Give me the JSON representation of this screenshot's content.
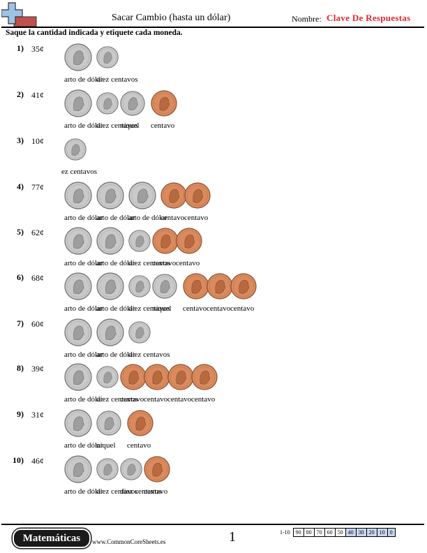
{
  "header": {
    "title": "Sacar Cambio (hasta un dólar)",
    "name_label": "Nombre:",
    "name_value": "Clave De Respuestas"
  },
  "instructions": "Saque la cantidad indicada y etiquete cada moneda.",
  "problems": [
    {
      "num": "1)",
      "amount": "35¢",
      "coins": [
        "quarter",
        "dime"
      ],
      "labels": [
        "arto de dólar",
        "diez centavos"
      ]
    },
    {
      "num": "2)",
      "amount": "41¢",
      "coins": [
        "quarter",
        "dime",
        "nickel",
        "penny"
      ],
      "labels": [
        "arto de dólar",
        "diez centavos",
        "níquel",
        "centavo"
      ]
    },
    {
      "num": "3)",
      "amount": "10¢",
      "coins": [
        "dime"
      ],
      "labels": [
        "ez centavos"
      ]
    },
    {
      "num": "4)",
      "amount": "77¢",
      "coins": [
        "quarter",
        "quarter",
        "quarter",
        "penny",
        "penny"
      ],
      "labels": [
        "arto de dólar",
        "arto de dólar",
        "arto de dólar",
        "centavo",
        "centavo"
      ]
    },
    {
      "num": "5)",
      "amount": "62¢",
      "coins": [
        "quarter",
        "quarter",
        "dime",
        "penny",
        "penny"
      ],
      "labels": [
        "arto de dólar",
        "arto de dólar",
        "diez centavos",
        "centavo",
        "centavo"
      ]
    },
    {
      "num": "6)",
      "amount": "68¢",
      "coins": [
        "quarter",
        "quarter",
        "dime",
        "nickel",
        "penny",
        "penny",
        "penny"
      ],
      "labels": [
        "arto de dólar",
        "arto de dólar",
        "diez centavos",
        "níquel",
        "centavo",
        "centavo",
        "centavo"
      ]
    },
    {
      "num": "7)",
      "amount": "60¢",
      "coins": [
        "quarter",
        "quarter",
        "dime"
      ],
      "labels": [
        "arto de dólar",
        "arto de dólar",
        "diez centavos"
      ]
    },
    {
      "num": "8)",
      "amount": "39¢",
      "coins": [
        "quarter",
        "dime",
        "penny",
        "penny",
        "penny",
        "penny"
      ],
      "labels": [
        "arto de dólar",
        "diez centavos",
        "centavo",
        "centavo",
        "centavo",
        "centavo"
      ]
    },
    {
      "num": "9)",
      "amount": "31¢",
      "coins": [
        "quarter",
        "nickel",
        "penny"
      ],
      "labels": [
        "arto de dólar",
        "níquel",
        "centavo"
      ]
    },
    {
      "num": "10)",
      "amount": "46¢",
      "coins": [
        "quarter",
        "dime",
        "dime",
        "penny"
      ],
      "labels": [
        "arto de dólar",
        "diez centavos",
        "diez centavos",
        "centavo"
      ]
    }
  ],
  "footer": {
    "brand": "Matemáticas",
    "site": "www.CommonCoreSheets.es",
    "page": "1",
    "score_label": "1-10",
    "scores": [
      "90",
      "80",
      "70",
      "60",
      "50",
      "40",
      "30",
      "20",
      "10",
      "0"
    ],
    "score_highlight_from": 5
  },
  "colors": {
    "name_value": "#e0262f",
    "silver": "#c9c9c9",
    "copper": "#d98a5e",
    "score_highlight": "#c8d6ee"
  }
}
